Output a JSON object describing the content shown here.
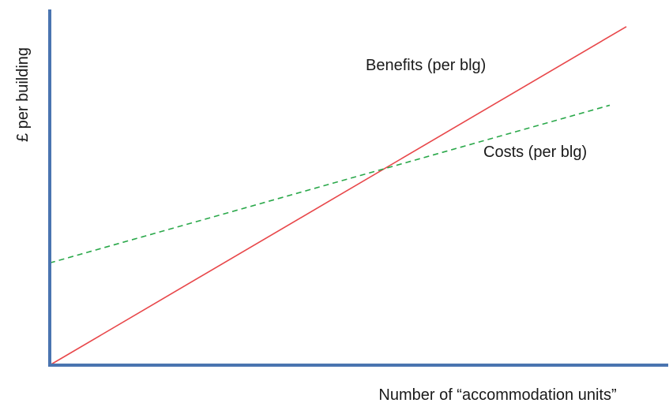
{
  "chart_data": {
    "type": "line",
    "title": "",
    "xlabel": "Number of “accommodation units”",
    "ylabel": "£ per building",
    "xlim": [
      0,
      100
    ],
    "ylim": [
      0,
      100
    ],
    "grid": false,
    "legend": "none",
    "series": [
      {
        "name": "Benefits (per blg)",
        "color": "#e8474a",
        "dash": "solid",
        "points": [
          [
            0,
            0
          ],
          [
            100,
            98
          ]
        ]
      },
      {
        "name": "Costs (per blg)",
        "color": "#2aa84a",
        "dash": "dashed",
        "points": [
          [
            0,
            29
          ],
          [
            100,
            76
          ]
        ]
      }
    ]
  },
  "axis_color": "#4a74b0"
}
